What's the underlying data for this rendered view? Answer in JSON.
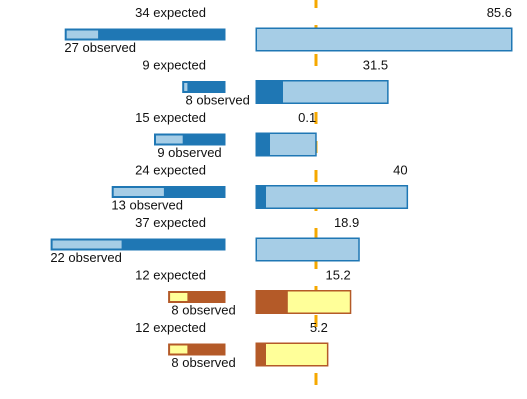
{
  "chart_data": {
    "type": "bar",
    "rows": [
      {
        "expected_label": "34 expected",
        "observed_label": "27 observed",
        "expected": 34,
        "observed": 27,
        "right_label": "85.6",
        "right_value": 85.6,
        "right_inner": 0,
        "scheme": "blue"
      },
      {
        "expected_label": "9 expected",
        "observed_label": "8 observed",
        "expected": 9,
        "observed": 8,
        "right_label": "31.5",
        "right_value": 31.5,
        "right_inner": 26,
        "scheme": "blue"
      },
      {
        "expected_label": "15 expected",
        "observed_label": "9 observed",
        "expected": 15,
        "observed": 9,
        "right_label": "0.1",
        "right_value": 0.1,
        "right_inner": 13,
        "scheme": "blue"
      },
      {
        "expected_label": "24 expected",
        "observed_label": "13 observed",
        "expected": 24,
        "observed": 13,
        "right_label": "40",
        "right_value": 40,
        "right_inner": 9,
        "scheme": "blue"
      },
      {
        "expected_label": "37 expected",
        "observed_label": "22 observed",
        "expected": 37,
        "observed": 22,
        "right_label": "18.9",
        "right_value": 18.9,
        "right_inner": 0,
        "scheme": "blue"
      },
      {
        "expected_label": "12 expected",
        "observed_label": "8 observed",
        "expected": 12,
        "observed": 8,
        "right_label": "15.2",
        "right_value": 15.2,
        "right_inner": 30.8,
        "scheme": "orange"
      },
      {
        "expected_label": "12 expected",
        "observed_label": "8 observed",
        "expected": 12,
        "observed": 8,
        "right_label": "5.2",
        "right_value": 5.2,
        "right_inner": 9,
        "scheme": "orange"
      }
    ],
    "reference_line": 0,
    "right_range": [
      -26.2,
      85.6
    ],
    "grid": false,
    "legend": "none"
  },
  "colors": {
    "blue_dark": "#1f77b4",
    "blue_light": "#a6cde6",
    "orange_dark": "#b45a28",
    "yellow_light": "#ffff99",
    "reference": "#f5a800"
  }
}
